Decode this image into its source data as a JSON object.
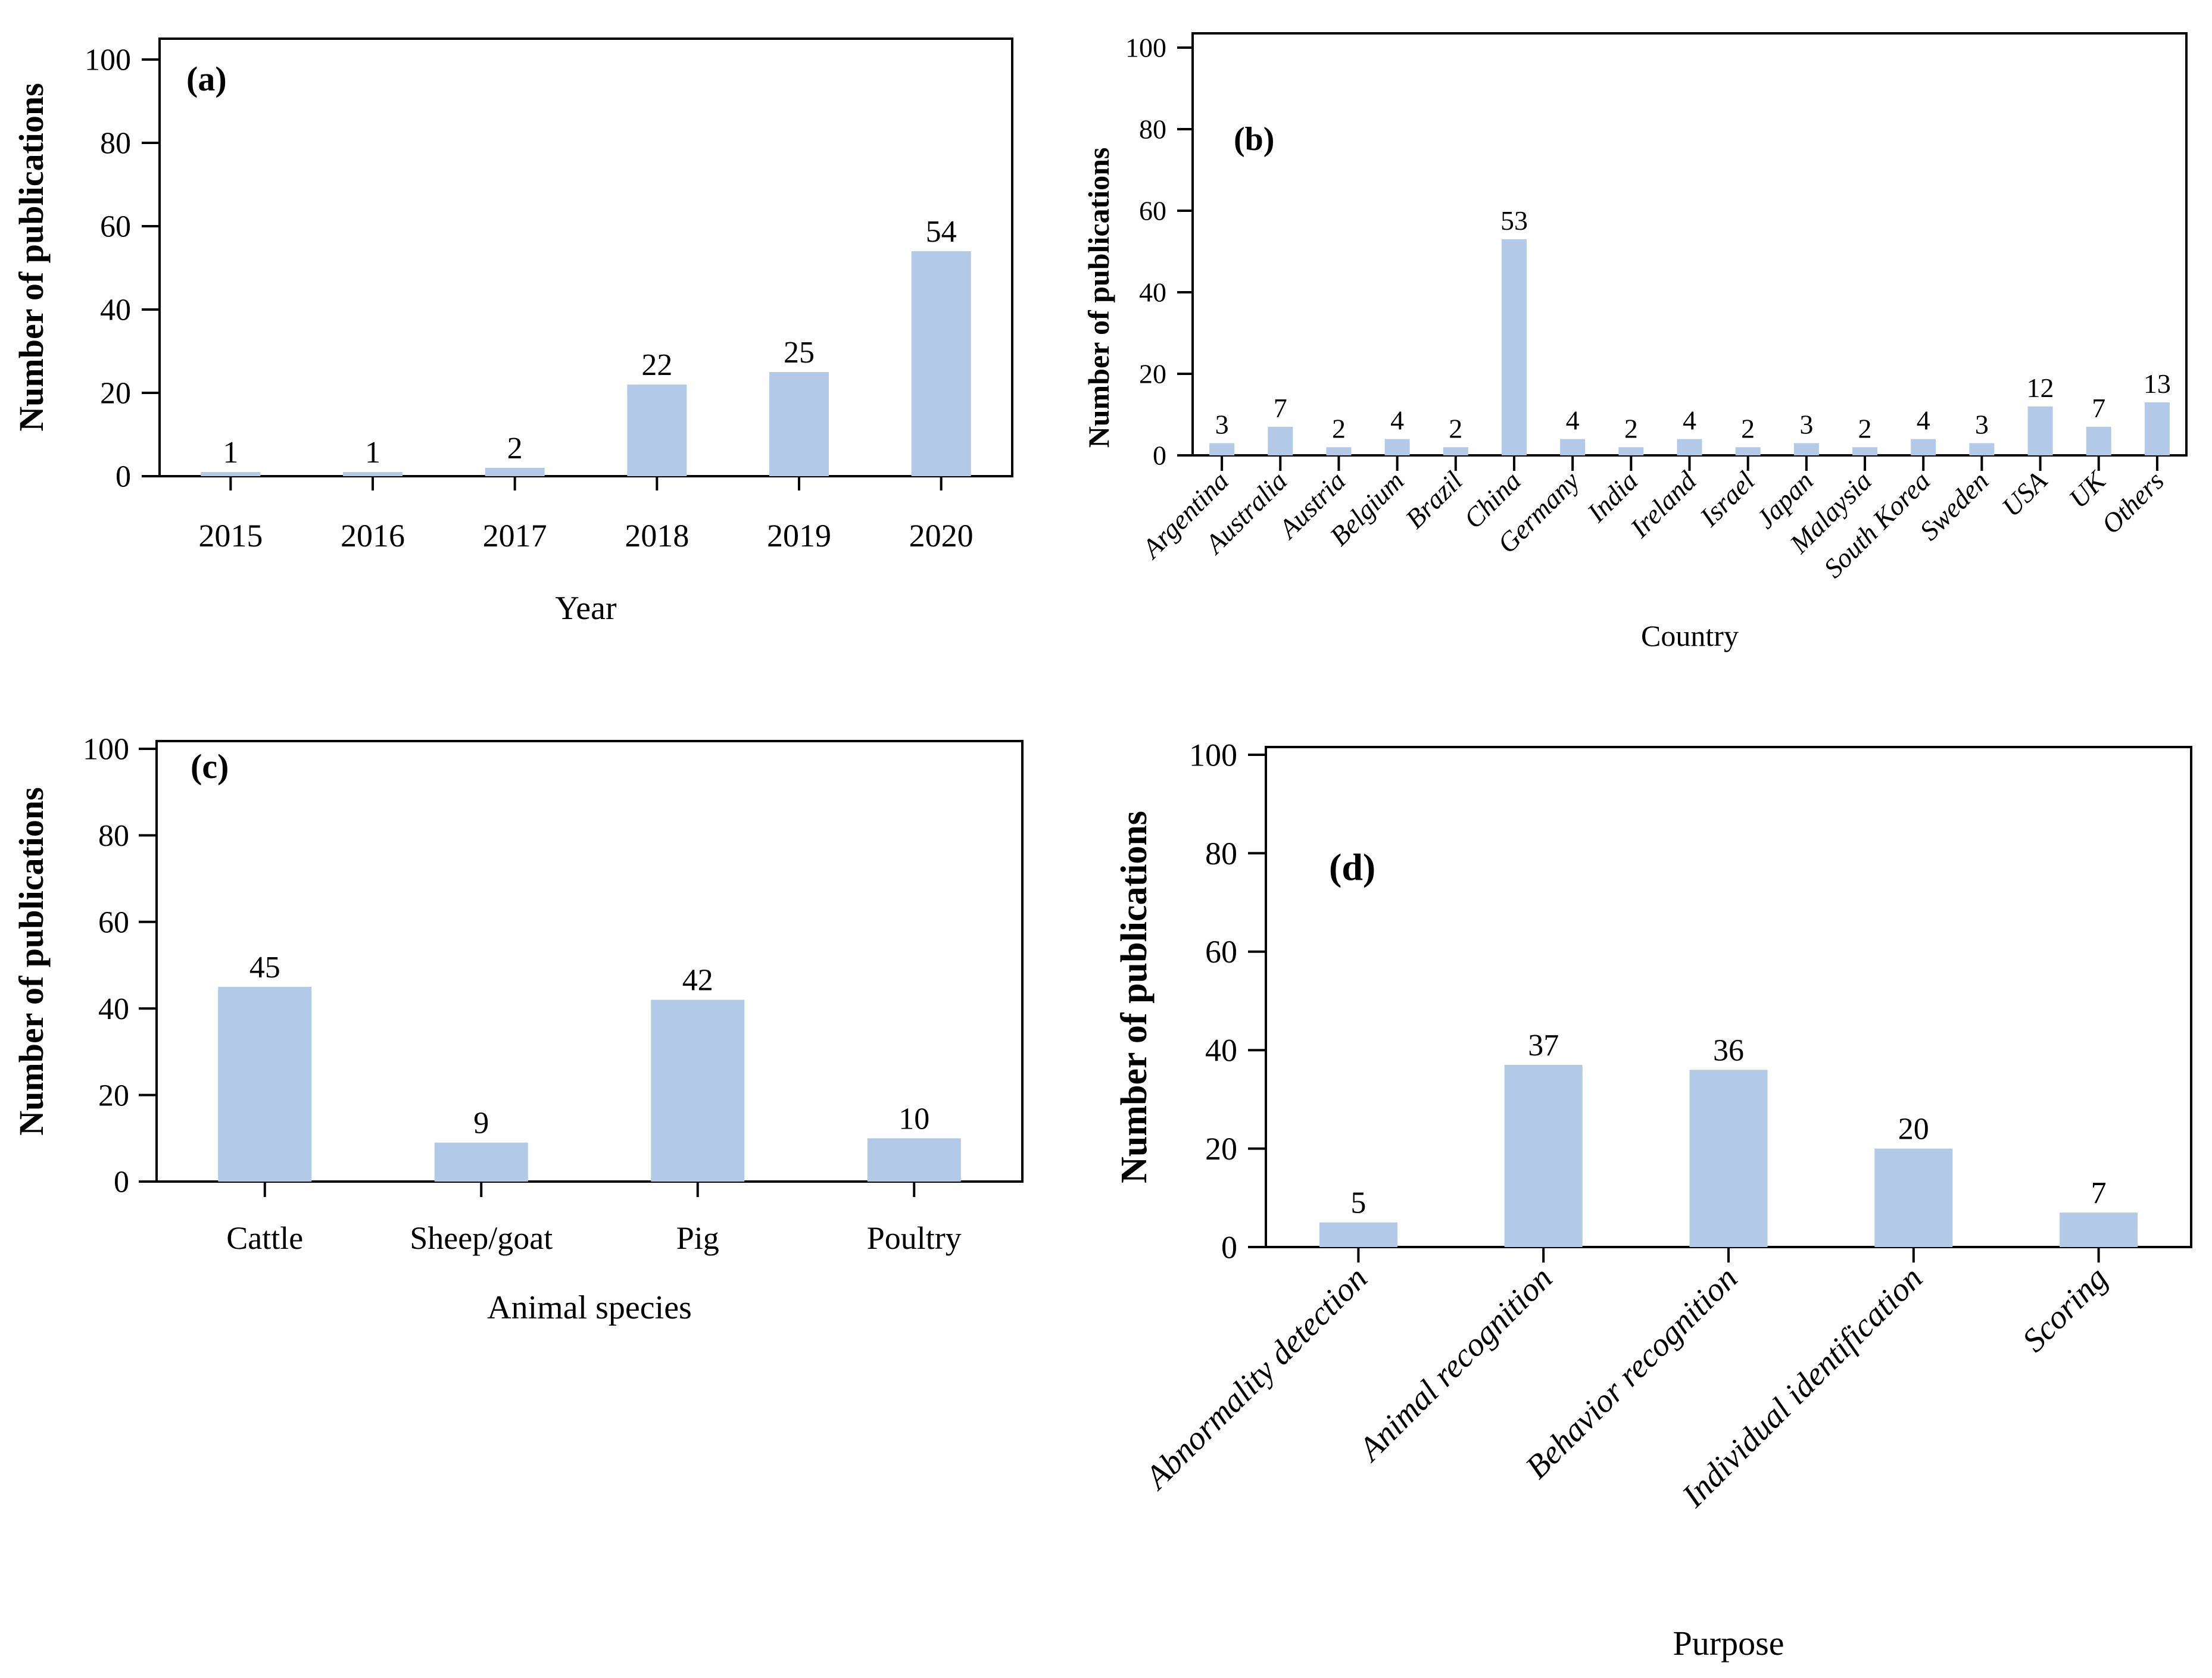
{
  "figure": {
    "background": "#ffffff",
    "bar_color": "#b3c9e8",
    "axis_color": "#000000",
    "text_color": "#000000"
  },
  "chart_data": [
    {
      "id": "a",
      "type": "bar",
      "panel_label": "(a)",
      "title": "",
      "xlabel": "Year",
      "ylabel": "Number of publications",
      "ylim": [
        0,
        100
      ],
      "yticks": [
        0,
        20,
        40,
        60,
        80,
        100
      ],
      "categories": [
        "2015",
        "2016",
        "2017",
        "2018",
        "2019",
        "2020"
      ],
      "values": [
        1,
        1,
        2,
        22,
        25,
        54
      ],
      "grid": false,
      "legend": false
    },
    {
      "id": "b",
      "type": "bar",
      "panel_label": "(b)",
      "title": "",
      "xlabel": "Country",
      "ylabel": "Number of publications",
      "ylim": [
        0,
        100
      ],
      "yticks": [
        0,
        20,
        40,
        60,
        80,
        100
      ],
      "categories": [
        "Argentina",
        "Australia",
        "Austria",
        "Belgium",
        "Brazil",
        "China",
        "Germany",
        "India",
        "Ireland",
        "Israel",
        "Japan",
        "Malaysia",
        "South Korea",
        "Sweden",
        "USA",
        "UK",
        "Others"
      ],
      "values": [
        3,
        7,
        2,
        4,
        2,
        53,
        4,
        2,
        4,
        2,
        3,
        2,
        4,
        3,
        12,
        7,
        13
      ],
      "grid": false,
      "legend": false
    },
    {
      "id": "c",
      "type": "bar",
      "panel_label": "(c)",
      "title": "",
      "xlabel": "Animal species",
      "ylabel": "Number of publications",
      "ylim": [
        0,
        100
      ],
      "yticks": [
        0,
        20,
        40,
        60,
        80,
        100
      ],
      "categories": [
        "Cattle",
        "Sheep/goat",
        "Pig",
        "Poultry"
      ],
      "values": [
        45,
        9,
        42,
        10
      ],
      "grid": false,
      "legend": false
    },
    {
      "id": "d",
      "type": "bar",
      "panel_label": "(d)",
      "title": "",
      "xlabel": "Purpose",
      "ylabel": "Number of publications",
      "ylim": [
        0,
        100
      ],
      "yticks": [
        0,
        20,
        40,
        60,
        80,
        100
      ],
      "categories": [
        "Abnormality detection",
        "Animal recognition",
        "Behavior recognition",
        "Individual identification",
        "Scoring"
      ],
      "values": [
        5,
        37,
        36,
        20,
        7
      ],
      "grid": false,
      "legend": false
    }
  ]
}
